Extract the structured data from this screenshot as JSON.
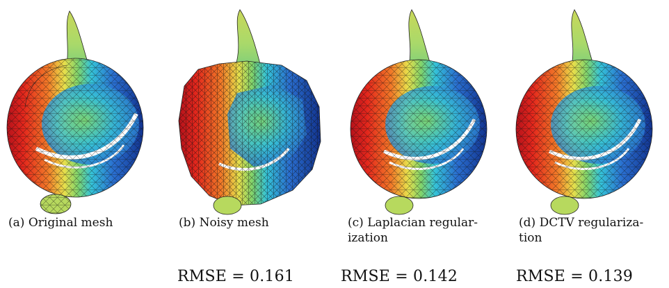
{
  "figure": {
    "panels": [
      {
        "label": "(a)",
        "caption_line1": "Original mesh",
        "caption_line2": "",
        "rmse": ""
      },
      {
        "label": "(b)",
        "caption_line1": "Noisy mesh",
        "caption_line2": "",
        "rmse": "RMSE = 0.161"
      },
      {
        "label": "(c)",
        "caption_line1": "Laplacian regular-",
        "caption_line2": "ization",
        "rmse": "RMSE = 0.142"
      },
      {
        "label": "(d)",
        "caption_line1": "DCTV regulariza-",
        "caption_line2": "tion",
        "rmse": "RMSE = 0.139"
      }
    ],
    "colors": {
      "red": "#d7191c",
      "orange": "#f07d2b",
      "yellow": "#e7e04a",
      "green": "#8fd16a",
      "cyan": "#3fc7d9",
      "blue": "#1f5fc9",
      "navy": "#123a9a"
    }
  }
}
